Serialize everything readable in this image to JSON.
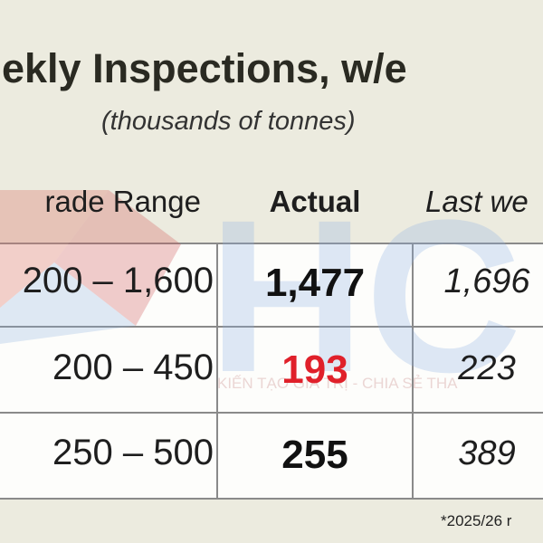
{
  "title": "ekly Inspections, w/e",
  "subtitle": "(thousands of tonnes)",
  "table": {
    "header": [
      "rade Range",
      "Actual",
      "Last we"
    ],
    "rows": [
      [
        "200 – 1,600",
        "1,477",
        "1,696"
      ],
      [
        "200 – 450",
        "193",
        "223"
      ],
      [
        "250 – 500",
        "255",
        "389"
      ]
    ]
  },
  "watermark": "KIẾN TẠO GIÁ TRỊ - CHIA SẺ THA",
  "footnote": "*2025/26 r"
}
